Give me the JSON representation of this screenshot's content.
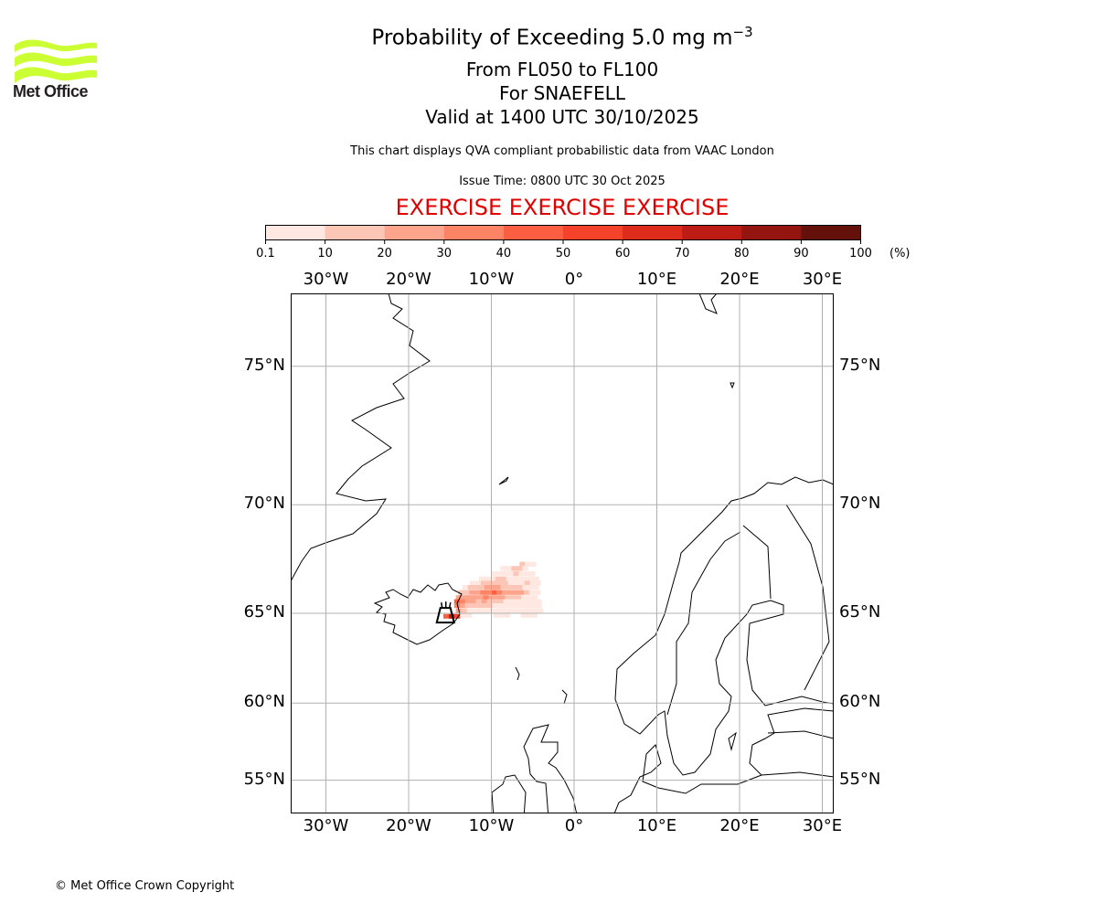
{
  "logo": {
    "text": "Met Office",
    "color": "#ccff33"
  },
  "header": {
    "title_main": "Probability of Exceeding 5.0 mg m",
    "title_sup": "−3",
    "subtitle_levels": "From FL050 to FL100",
    "subtitle_volcano": "For SNAEFELL",
    "subtitle_valid": "Valid at 1400 UTC 30/10/2025",
    "description": "This chart displays QVA compliant probabilistic data from VAAC London",
    "issue_time": "Issue Time: 0800 UTC 30 Oct 2025",
    "exercise": "EXERCISE EXERCISE EXERCISE",
    "exercise_color": "#e00000"
  },
  "colorbar": {
    "unit": "(%)",
    "ticks": [
      "0.1",
      "10",
      "20",
      "30",
      "40",
      "50",
      "60",
      "70",
      "80",
      "90",
      "100"
    ],
    "bounds": [
      0.1,
      10,
      20,
      30,
      40,
      50,
      60,
      70,
      80,
      90,
      100
    ],
    "colors": [
      "#fee8e1",
      "#fcc6b6",
      "#fca58c",
      "#fc8464",
      "#fb5e40",
      "#f4432a",
      "#dd2c1b",
      "#bd1c15",
      "#941410",
      "#63110a"
    ]
  },
  "chart_data": {
    "type": "heatmap",
    "projection": "mercator",
    "lon_range": [
      -34.3,
      31.4
    ],
    "lat_range": [
      52.8,
      77.0
    ],
    "grid": true,
    "lon_ticks": [
      -30,
      -20,
      -10,
      0,
      10,
      20,
      30
    ],
    "lon_tick_labels": [
      "30°W",
      "20°W",
      "10°W",
      "0°",
      "10°E",
      "20°E",
      "30°E"
    ],
    "lat_ticks": [
      55,
      60,
      65,
      70,
      75
    ],
    "lat_tick_labels": [
      "55°N",
      "60°N",
      "65°N",
      "70°N",
      "75°N"
    ],
    "volcano": {
      "lon": -15.5,
      "lat": 64.9,
      "icon": "volcano-icon"
    },
    "cell_size_deg": [
      0.66,
      0.22
    ],
    "rows": [
      {
        "lat": 67.4,
        "lon_start": -6.6,
        "values": [
          12,
          5,
          5
        ]
      },
      {
        "lat": 67.2,
        "lon_start": -8.9,
        "values": [
          5,
          5,
          12,
          12,
          5
        ]
      },
      {
        "lat": 66.95,
        "lon_start": -10.0,
        "values": [
          5,
          5,
          5,
          8,
          12,
          5,
          5,
          5
        ]
      },
      {
        "lat": 66.7,
        "lon_start": -11.5,
        "values": [
          5,
          5,
          5,
          15,
          15,
          8,
          5,
          5,
          5,
          5,
          5
        ]
      },
      {
        "lat": 66.5,
        "lon_start": -12.6,
        "values": [
          5,
          8,
          12,
          15,
          12,
          12,
          12,
          8,
          5,
          5,
          15,
          5,
          5
        ]
      },
      {
        "lat": 66.3,
        "lon_start": -13.5,
        "values": [
          8,
          12,
          15,
          18,
          22,
          28,
          20,
          18,
          15,
          18,
          12,
          8,
          5,
          5
        ]
      },
      {
        "lat": 66.05,
        "lon_start": -14.0,
        "values": [
          10,
          15,
          20,
          25,
          30,
          38,
          40,
          30,
          25,
          25,
          20,
          22,
          15,
          8,
          5
        ]
      },
      {
        "lat": 65.8,
        "lon_start": -14.3,
        "values": [
          25,
          20,
          25,
          28,
          25,
          30,
          28,
          22,
          20,
          18,
          12,
          10,
          8,
          5,
          5
        ]
      },
      {
        "lat": 65.6,
        "lon_start": -14.5,
        "values": [
          40,
          30,
          22,
          20,
          18,
          20,
          15,
          12,
          10,
          8,
          5,
          5,
          5,
          5,
          5,
          5
        ]
      },
      {
        "lat": 65.4,
        "lon_start": -14.5,
        "values": [
          35,
          25,
          15,
          12,
          12,
          10,
          10,
          8,
          5,
          5,
          5,
          5,
          5,
          8,
          5,
          5
        ]
      },
      {
        "lat": 65.15,
        "lon_start": -14.3,
        "values": [
          20,
          12,
          8,
          5,
          5,
          5,
          5,
          5,
          5,
          5,
          5,
          5,
          5,
          5,
          5,
          5
        ]
      },
      {
        "lat": 64.9,
        "lon_start": -13.7,
        "values": [
          5,
          5,
          0,
          0,
          0,
          0,
          5,
          5,
          5,
          0,
          0,
          8,
          8,
          5
        ]
      },
      {
        "lat": 64.85,
        "lon_start": -15.8,
        "values": [
          40,
          75,
          50
        ]
      }
    ]
  },
  "footer": {
    "copyright": "© Met Office Crown Copyright"
  }
}
